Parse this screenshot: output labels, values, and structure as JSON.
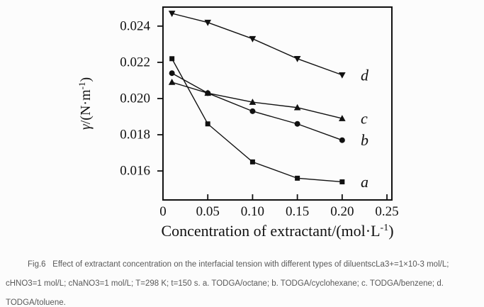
{
  "colors": {
    "ink": "#111111",
    "caption_text": "#595959",
    "background": "#fcfcfc"
  },
  "chart_data": {
    "type": "line",
    "title": "",
    "xlabel": "Concentration of extractant/(mol·L⁻¹)",
    "xlabel_parts": {
      "pre": "Concentration of extractant/(mol·L",
      "sup": "-1",
      "post": ")"
    },
    "ylabel": "γ/(N·m⁻¹)",
    "ylabel_parts": {
      "sym": "γ",
      "pre": "/(N·m",
      "sup": "-1",
      "post": ")"
    },
    "x": [
      0.01,
      0.05,
      0.1,
      0.15,
      0.2
    ],
    "series": [
      {
        "name": "a",
        "diluent": "TODGA/octane",
        "marker": "square",
        "values": [
          0.0222,
          0.0186,
          0.0165,
          0.0156,
          0.0154
        ]
      },
      {
        "name": "b",
        "diluent": "TODGA/cyclohexane",
        "marker": "circle",
        "values": [
          0.0214,
          0.0203,
          0.0193,
          0.0186,
          0.0177
        ]
      },
      {
        "name": "c",
        "diluent": "TODGA/benzene",
        "marker": "triangle-up",
        "values": [
          0.0209,
          0.0203,
          0.0198,
          0.0195,
          0.0189
        ]
      },
      {
        "name": "d",
        "diluent": "TODGA/toluene",
        "marker": "triangle-down",
        "values": [
          0.0247,
          0.0242,
          0.0233,
          0.0222,
          0.0213
        ]
      }
    ],
    "xticks": [
      0,
      0.05,
      0.1,
      0.15,
      0.2,
      0.25
    ],
    "xtick_labels": [
      "0",
      "0.05",
      "0.10",
      "0.15",
      "0.20",
      "0.25"
    ],
    "yticks": [
      0.016,
      0.018,
      0.02,
      0.022,
      0.024
    ],
    "ytick_labels": [
      "0.016",
      "0.018",
      "0.020",
      "0.022",
      "0.024"
    ],
    "xlim": [
      0,
      0.2555
    ],
    "ylim": [
      0.0144,
      0.02505
    ],
    "grid": false,
    "legend_position": "inline-right-series-letters"
  },
  "caption": {
    "line1": "Fig.6   Effect of extractant concentration on the interfacial tension with different types of diluentscLa3+=1×10-3 mol/L;",
    "line2": "cHNO3=1 mol/L; cNaNO3=1 mol/L; T=298 K; t=150 s. a. TODGA/octane; b. TODGA/cyclohexane; c. TODGA/benzene; d.",
    "line3": "TODGA/toluene."
  }
}
